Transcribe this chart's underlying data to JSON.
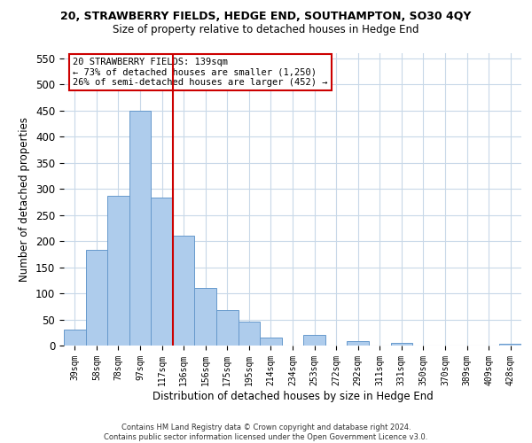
{
  "title1": "20, STRAWBERRY FIELDS, HEDGE END, SOUTHAMPTON, SO30 4QY",
  "title2": "Size of property relative to detached houses in Hedge End",
  "xlabel": "Distribution of detached houses by size in Hedge End",
  "ylabel": "Number of detached properties",
  "bar_labels": [
    "39sqm",
    "58sqm",
    "78sqm",
    "97sqm",
    "117sqm",
    "136sqm",
    "156sqm",
    "175sqm",
    "195sqm",
    "214sqm",
    "234sqm",
    "253sqm",
    "272sqm",
    "292sqm",
    "311sqm",
    "331sqm",
    "350sqm",
    "370sqm",
    "389sqm",
    "409sqm",
    "428sqm"
  ],
  "bar_values": [
    30,
    183,
    287,
    450,
    283,
    210,
    110,
    68,
    45,
    15,
    0,
    20,
    0,
    8,
    0,
    5,
    0,
    0,
    0,
    0,
    3
  ],
  "bar_color": "#aeccec",
  "bar_edge_color": "#6699cc",
  "vline_color": "#cc0000",
  "annotation_title": "20 STRAWBERRY FIELDS: 139sqm",
  "annotation_line1": "← 73% of detached houses are smaller (1,250)",
  "annotation_line2": "26% of semi-detached houses are larger (452) →",
  "annotation_box_color": "#ffffff",
  "annotation_box_edge": "#cc0000",
  "ylim": [
    0,
    560
  ],
  "yticks": [
    0,
    50,
    100,
    150,
    200,
    250,
    300,
    350,
    400,
    450,
    500,
    550
  ],
  "footnote1": "Contains HM Land Registry data © Crown copyright and database right 2024.",
  "footnote2": "Contains public sector information licensed under the Open Government Licence v3.0.",
  "bg_color": "#ffffff",
  "grid_color": "#c8d8e8"
}
